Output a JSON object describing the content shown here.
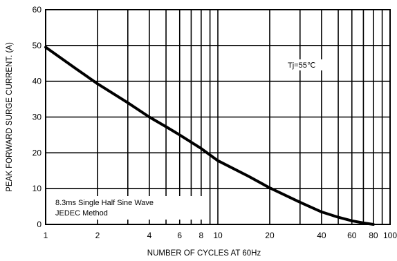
{
  "chart_data": {
    "type": "line",
    "xlabel": "NUMBER OF CYCLES AT 60Hz",
    "ylabel": "PEAK FORWARD SURGE CURRENT. (A)",
    "x_scale": "log",
    "xlim": [
      1,
      100
    ],
    "ylim": [
      0,
      60
    ],
    "x_ticks": [
      1,
      2,
      4,
      6,
      8,
      10,
      20,
      40,
      60,
      80,
      100
    ],
    "x_tick_labels": [
      "1",
      "2",
      "4",
      "6",
      "8",
      "10",
      "20",
      "40",
      "60",
      "80",
      "100"
    ],
    "x_grid": [
      1,
      2,
      3,
      4,
      5,
      6,
      7,
      8,
      9,
      10,
      20,
      30,
      40,
      50,
      60,
      70,
      80,
      90,
      100
    ],
    "y_ticks": [
      0,
      10,
      20,
      30,
      40,
      50,
      60
    ],
    "y_tick_labels": [
      "0",
      "10",
      "20",
      "30",
      "40",
      "50",
      "60"
    ],
    "grid": true,
    "series": [
      {
        "x": [
          1,
          1.5,
          2,
          3,
          4,
          5,
          6,
          8,
          10,
          15,
          20,
          30,
          40,
          50,
          60,
          70,
          80
        ],
        "y": [
          49.5,
          43.5,
          39.3,
          34,
          30,
          27.3,
          25,
          21.2,
          17.8,
          13.5,
          10.2,
          6.2,
          3.5,
          2,
          1,
          0.4,
          0
        ]
      }
    ],
    "annotations": [
      {
        "text": "Tj=55℃",
        "position": "top-right"
      },
      {
        "text": "8.3ms Single Half Sine Wave",
        "position": "bottom-left"
      },
      {
        "text": "JEDEC Method",
        "position": "bottom-left"
      }
    ]
  }
}
